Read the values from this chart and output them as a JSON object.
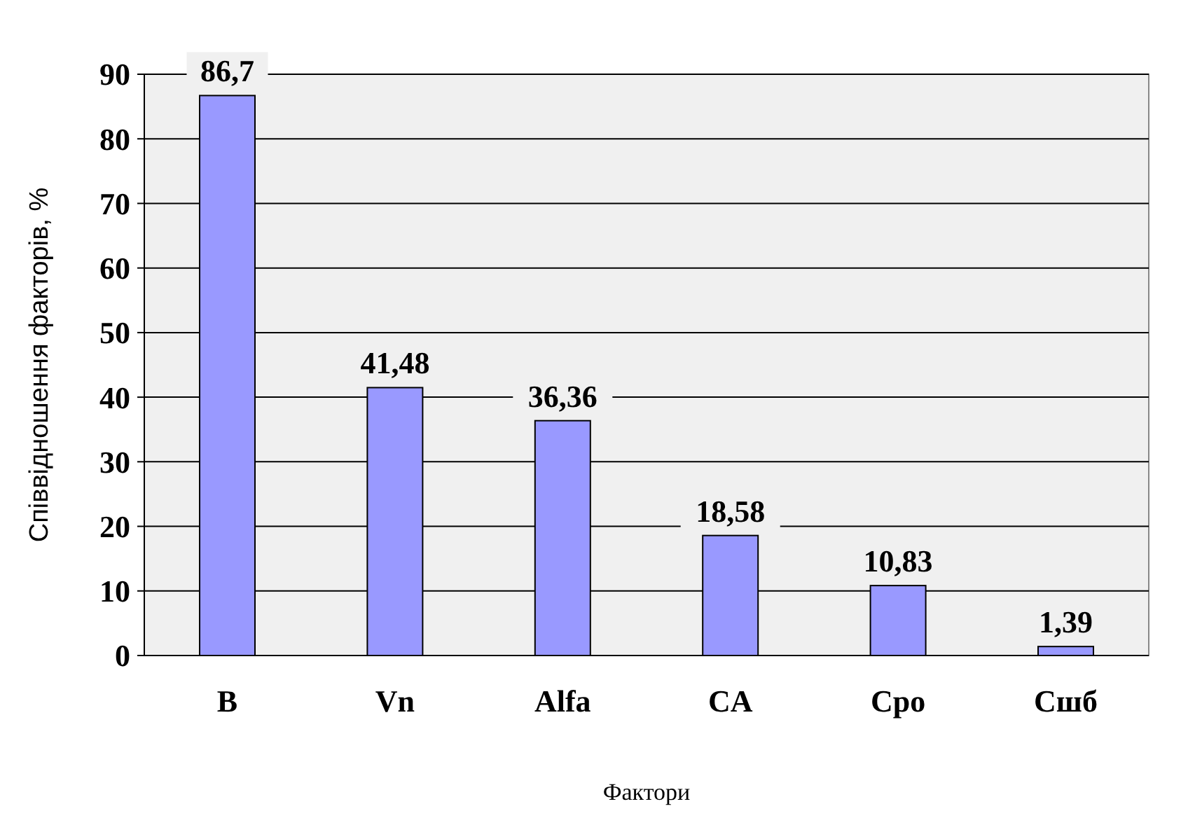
{
  "chart_data": {
    "type": "bar",
    "xlabel": "Фактори",
    "ylabel": "Співвідношення факторів, %",
    "categories": [
      "B",
      "Vn",
      "Alfa",
      "CA",
      "Cpo",
      "Сшб"
    ],
    "values": [
      86.7,
      41.48,
      36.36,
      18.58,
      10.83,
      1.39
    ],
    "value_labels": [
      "86,7",
      "41,48",
      "36,36",
      "18,58",
      "10,83",
      "1,39"
    ],
    "color": "#9999ff",
    "ylim": [
      0,
      90
    ],
    "yticks": [
      0,
      10,
      20,
      30,
      40,
      50,
      60,
      70,
      80,
      90
    ],
    "grid": "y"
  }
}
